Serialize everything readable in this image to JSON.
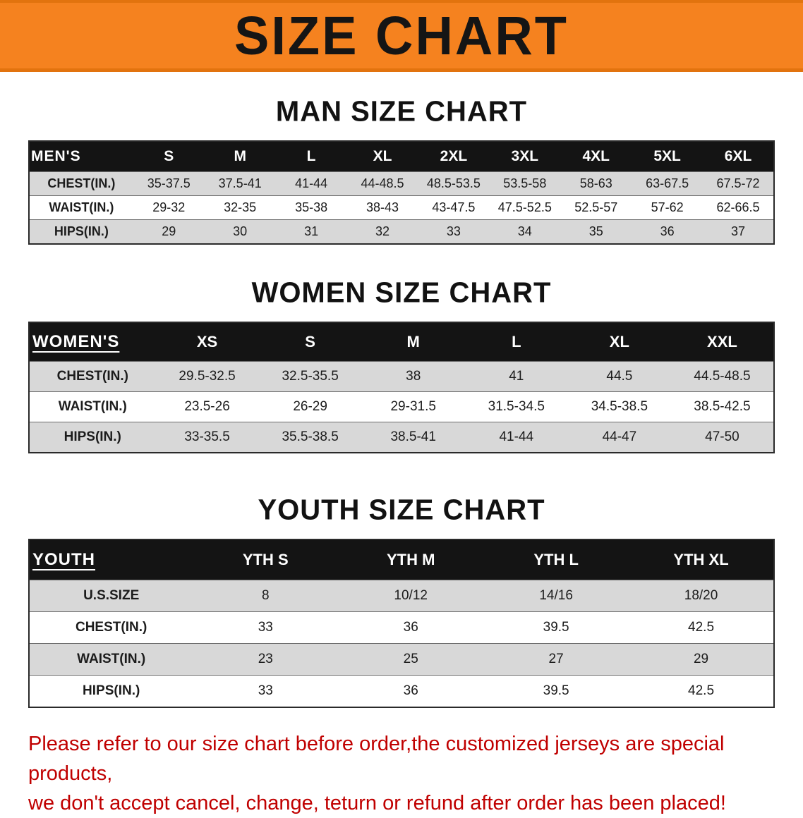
{
  "banner": {
    "title": "SIZE CHART"
  },
  "colors": {
    "banner_bg": "#f5821f",
    "header_bg": "#141414",
    "stripe": "#d8d8d8",
    "notice_text": "#c00000"
  },
  "tables": {
    "men": {
      "section_title": "MAN SIZE CHART",
      "header": [
        "MEN'S",
        "S",
        "M",
        "L",
        "XL",
        "2XL",
        "3XL",
        "4XL",
        "5XL",
        "6XL"
      ],
      "rows": [
        {
          "label": "CHEST(IN.)",
          "values": [
            "35-37.5",
            "37.5-41",
            "41-44",
            "44-48.5",
            "48.5-53.5",
            "53.5-58",
            "58-63",
            "63-67.5",
            "67.5-72"
          ]
        },
        {
          "label": "WAIST(IN.)",
          "values": [
            "29-32",
            "32-35",
            "35-38",
            "38-43",
            "43-47.5",
            "47.5-52.5",
            "52.5-57",
            "57-62",
            "62-66.5"
          ]
        },
        {
          "label": "HIPS(IN.)",
          "values": [
            "29",
            "30",
            "31",
            "32",
            "33",
            "34",
            "35",
            "36",
            "37"
          ]
        }
      ]
    },
    "women": {
      "section_title": "WOMEN SIZE CHART",
      "header": [
        "WOMEN'S",
        "XS",
        "S",
        "M",
        "L",
        "XL",
        "XXL"
      ],
      "rows": [
        {
          "label": "CHEST(IN.)",
          "values": [
            "29.5-32.5",
            "32.5-35.5",
            "38",
            "41",
            "44.5",
            "44.5-48.5"
          ]
        },
        {
          "label": "WAIST(IN.)",
          "values": [
            "23.5-26",
            "26-29",
            "29-31.5",
            "31.5-34.5",
            "34.5-38.5",
            "38.5-42.5"
          ]
        },
        {
          "label": "HIPS(IN.)",
          "values": [
            "33-35.5",
            "35.5-38.5",
            "38.5-41",
            "41-44",
            "44-47",
            "47-50"
          ]
        }
      ]
    },
    "youth": {
      "section_title": "YOUTH SIZE CHART",
      "header": [
        "YOUTH",
        "YTH S",
        "YTH M",
        "YTH L",
        "YTH XL"
      ],
      "rows": [
        {
          "label": "U.S.SIZE",
          "values": [
            "8",
            "10/12",
            "14/16",
            "18/20"
          ]
        },
        {
          "label": "CHEST(IN.)",
          "values": [
            "33",
            "36",
            "39.5",
            "42.5"
          ]
        },
        {
          "label": "WAIST(IN.)",
          "values": [
            "23",
            "25",
            "27",
            "29"
          ]
        },
        {
          "label": "HIPS(IN.)",
          "values": [
            "33",
            "36",
            "39.5",
            "42.5"
          ]
        }
      ]
    }
  },
  "footer": {
    "line1": "Please refer to our size chart before order,the customized jerseys are special products,",
    "line2": "we don't accept cancel, change, teturn or refund after order has been placed!"
  }
}
